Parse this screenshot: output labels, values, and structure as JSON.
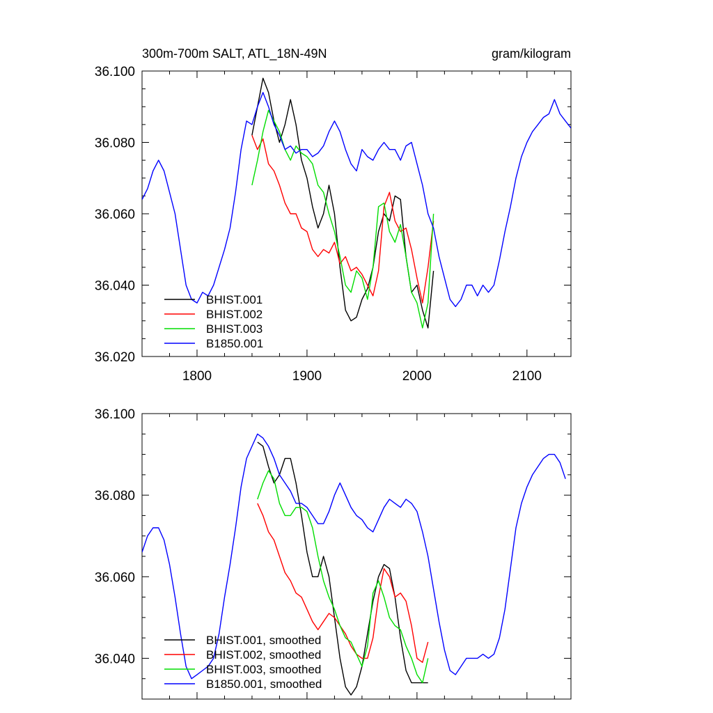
{
  "header": {
    "title": "300m-700m SALT, ATL_18N-49N",
    "units": "gram/kilogram"
  },
  "chart_data": [
    {
      "type": "line",
      "xlim": [
        1750,
        2140
      ],
      "ylim": [
        36.02,
        36.1
      ],
      "xticks": [
        1800,
        1900,
        2000,
        2100
      ],
      "yticks": [
        36.02,
        36.04,
        36.06,
        36.08,
        36.1
      ],
      "xtick_labels": [
        "1800",
        "1900",
        "2000",
        "2100"
      ],
      "ytick_labels": [
        "36.020",
        "36.040",
        "36.060",
        "36.080",
        "36.100"
      ],
      "legend_position": "bottom-left",
      "series": [
        {
          "name": "BHIST.001",
          "color": "#000000",
          "x": [
            1850,
            1855,
            1860,
            1865,
            1870,
            1875,
            1880,
            1885,
            1890,
            1895,
            1900,
            1905,
            1910,
            1915,
            1920,
            1925,
            1930,
            1935,
            1940,
            1945,
            1950,
            1955,
            1960,
            1965,
            1970,
            1975,
            1980,
            1985,
            1990,
            1995,
            2000,
            2005,
            2010,
            2015
          ],
          "y": [
            36.082,
            36.09,
            36.098,
            36.094,
            36.086,
            36.08,
            36.085,
            36.092,
            36.085,
            36.075,
            36.07,
            36.062,
            36.056,
            36.06,
            36.068,
            36.06,
            36.045,
            36.033,
            36.03,
            36.031,
            36.036,
            36.039,
            36.045,
            36.055,
            36.06,
            36.058,
            36.065,
            36.064,
            36.048,
            36.038,
            36.04,
            36.033,
            36.028,
            36.044
          ]
        },
        {
          "name": "BHIST.002",
          "color": "#ff0000",
          "x": [
            1850,
            1855,
            1860,
            1865,
            1870,
            1875,
            1880,
            1885,
            1890,
            1895,
            1900,
            1905,
            1910,
            1915,
            1920,
            1925,
            1930,
            1935,
            1940,
            1945,
            1950,
            1955,
            1960,
            1965,
            1970,
            1975,
            1980,
            1985,
            1990,
            1995,
            2000,
            2005,
            2010,
            2015
          ],
          "y": [
            36.082,
            36.078,
            36.081,
            36.074,
            36.072,
            36.068,
            36.063,
            36.06,
            36.06,
            36.056,
            36.055,
            36.05,
            36.048,
            36.05,
            36.049,
            36.052,
            36.046,
            36.048,
            36.044,
            36.045,
            36.043,
            36.04,
            36.037,
            36.044,
            36.062,
            36.066,
            36.058,
            36.055,
            36.056,
            36.05,
            36.042,
            36.035,
            36.045,
            36.058
          ]
        },
        {
          "name": "BHIST.003",
          "color": "#00dd00",
          "x": [
            1850,
            1855,
            1860,
            1865,
            1870,
            1875,
            1880,
            1885,
            1890,
            1895,
            1900,
            1905,
            1910,
            1915,
            1920,
            1925,
            1930,
            1935,
            1940,
            1945,
            1950,
            1955,
            1960,
            1965,
            1970,
            1975,
            1980,
            1985,
            1990,
            1995,
            2000,
            2005,
            2010,
            2015
          ],
          "y": [
            36.068,
            36.075,
            36.083,
            36.089,
            36.086,
            36.083,
            36.078,
            36.075,
            36.079,
            36.077,
            36.076,
            36.074,
            36.068,
            36.066,
            36.06,
            36.055,
            36.048,
            36.04,
            36.038,
            36.044,
            36.042,
            36.036,
            36.045,
            36.062,
            36.063,
            36.055,
            36.052,
            36.057,
            36.048,
            36.038,
            36.035,
            36.028,
            36.035,
            36.06
          ]
        },
        {
          "name": "B1850.001",
          "color": "#0000ff",
          "x": [
            1750,
            1755,
            1760,
            1765,
            1770,
            1775,
            1780,
            1785,
            1790,
            1795,
            1800,
            1805,
            1810,
            1815,
            1820,
            1825,
            1830,
            1835,
            1840,
            1845,
            1850,
            1855,
            1860,
            1865,
            1870,
            1875,
            1880,
            1885,
            1890,
            1895,
            1900,
            1905,
            1910,
            1915,
            1920,
            1925,
            1930,
            1935,
            1940,
            1945,
            1950,
            1955,
            1960,
            1965,
            1970,
            1975,
            1980,
            1985,
            1990,
            1995,
            2000,
            2005,
            2010,
            2015,
            2020,
            2025,
            2030,
            2035,
            2040,
            2045,
            2050,
            2055,
            2060,
            2065,
            2070,
            2075,
            2080,
            2085,
            2090,
            2095,
            2100,
            2105,
            2110,
            2115,
            2120,
            2125,
            2130,
            2135,
            2140
          ],
          "y": [
            36.064,
            36.067,
            36.072,
            36.075,
            36.072,
            36.066,
            36.06,
            36.05,
            36.04,
            36.036,
            36.035,
            36.038,
            36.037,
            36.04,
            36.045,
            36.05,
            36.056,
            36.066,
            36.078,
            36.086,
            36.085,
            36.09,
            36.094,
            36.09,
            36.085,
            36.082,
            36.078,
            36.079,
            36.077,
            36.078,
            36.078,
            36.076,
            36.077,
            36.079,
            36.083,
            36.086,
            36.083,
            36.078,
            36.074,
            36.072,
            36.078,
            36.076,
            36.075,
            36.078,
            36.08,
            36.078,
            36.078,
            36.075,
            36.079,
            36.08,
            36.074,
            36.068,
            36.06,
            36.056,
            36.048,
            36.042,
            36.036,
            36.034,
            36.036,
            36.04,
            36.04,
            36.037,
            36.04,
            36.038,
            36.04,
            36.047,
            36.055,
            36.062,
            36.07,
            36.076,
            36.08,
            36.083,
            36.085,
            36.087,
            36.088,
            36.092,
            36.088,
            36.086,
            36.084
          ]
        }
      ]
    },
    {
      "type": "line",
      "xlim": [
        1750,
        2140
      ],
      "ylim": [
        36.03,
        36.1
      ],
      "xticks": [
        1800,
        1900,
        2000,
        2100
      ],
      "yticks": [
        36.04,
        36.06,
        36.08,
        36.1
      ],
      "ytick_labels": [
        "36.040",
        "36.060",
        "36.080",
        "36.100"
      ],
      "legend_position": "bottom-left",
      "series": [
        {
          "name": "BHIST.001, smoothed",
          "color": "#000000",
          "x": [
            1855,
            1860,
            1865,
            1870,
            1875,
            1880,
            1885,
            1890,
            1895,
            1900,
            1905,
            1910,
            1915,
            1920,
            1925,
            1930,
            1935,
            1940,
            1945,
            1950,
            1955,
            1960,
            1965,
            1970,
            1975,
            1980,
            1985,
            1990,
            1995,
            2000,
            2005,
            2010
          ],
          "y": [
            36.093,
            36.092,
            36.087,
            36.083,
            36.085,
            36.089,
            36.089,
            36.083,
            36.075,
            36.066,
            36.06,
            36.06,
            36.065,
            36.06,
            36.05,
            36.04,
            36.033,
            36.031,
            36.033,
            36.038,
            36.046,
            36.054,
            36.06,
            36.063,
            36.062,
            36.055,
            36.045,
            36.037,
            36.034,
            36.034,
            36.034,
            36.034
          ]
        },
        {
          "name": "BHIST.002, smoothed",
          "color": "#ff0000",
          "x": [
            1855,
            1860,
            1865,
            1870,
            1875,
            1880,
            1885,
            1890,
            1895,
            1900,
            1905,
            1910,
            1915,
            1920,
            1925,
            1930,
            1935,
            1940,
            1945,
            1950,
            1955,
            1960,
            1965,
            1970,
            1975,
            1980,
            1985,
            1990,
            1995,
            2000,
            2005,
            2010
          ],
          "y": [
            36.078,
            36.075,
            36.071,
            36.069,
            36.065,
            36.061,
            36.059,
            36.056,
            36.055,
            36.052,
            36.049,
            36.047,
            36.049,
            36.051,
            36.05,
            36.048,
            36.046,
            36.043,
            36.041,
            36.04,
            36.04,
            36.045,
            36.055,
            36.062,
            36.06,
            36.055,
            36.056,
            36.054,
            36.048,
            36.04,
            36.039,
            36.044
          ]
        },
        {
          "name": "BHIST.003, smoothed",
          "color": "#00dd00",
          "x": [
            1855,
            1860,
            1865,
            1870,
            1875,
            1880,
            1885,
            1890,
            1895,
            1900,
            1905,
            1910,
            1915,
            1920,
            1925,
            1930,
            1935,
            1940,
            1945,
            1950,
            1955,
            1960,
            1965,
            1970,
            1975,
            1980,
            1985,
            1990,
            1995,
            2000,
            2005,
            2010
          ],
          "y": [
            36.079,
            36.083,
            36.086,
            36.084,
            36.078,
            36.075,
            36.075,
            36.077,
            36.077,
            36.076,
            36.072,
            36.065,
            36.059,
            36.055,
            36.052,
            36.048,
            36.045,
            36.044,
            36.041,
            36.038,
            36.043,
            36.056,
            36.059,
            36.055,
            36.05,
            36.048,
            36.047,
            36.043,
            36.04,
            36.036,
            36.034,
            36.04
          ]
        },
        {
          "name": "B1850.001, smoothed",
          "color": "#0000ff",
          "x": [
            1750,
            1755,
            1760,
            1765,
            1770,
            1775,
            1780,
            1785,
            1790,
            1795,
            1800,
            1805,
            1810,
            1815,
            1820,
            1825,
            1830,
            1835,
            1840,
            1845,
            1850,
            1855,
            1860,
            1865,
            1870,
            1875,
            1880,
            1885,
            1890,
            1895,
            1900,
            1905,
            1910,
            1915,
            1920,
            1925,
            1930,
            1935,
            1940,
            1945,
            1950,
            1955,
            1960,
            1965,
            1970,
            1975,
            1980,
            1985,
            1990,
            1995,
            2000,
            2005,
            2010,
            2015,
            2020,
            2025,
            2030,
            2035,
            2040,
            2045,
            2050,
            2055,
            2060,
            2065,
            2070,
            2075,
            2080,
            2085,
            2090,
            2095,
            2100,
            2105,
            2110,
            2115,
            2120,
            2125,
            2130,
            2135
          ],
          "y": [
            36.066,
            36.07,
            36.072,
            36.072,
            36.069,
            36.063,
            36.055,
            36.046,
            36.038,
            36.035,
            36.036,
            36.037,
            36.038,
            36.04,
            36.046,
            36.055,
            36.063,
            36.072,
            36.082,
            36.089,
            36.092,
            36.095,
            36.094,
            36.092,
            36.089,
            36.085,
            36.083,
            36.081,
            36.078,
            36.078,
            36.077,
            36.075,
            36.073,
            36.073,
            36.076,
            36.08,
            36.083,
            36.08,
            36.077,
            36.075,
            36.074,
            36.072,
            36.071,
            36.074,
            36.077,
            36.079,
            36.078,
            36.077,
            36.079,
            36.078,
            36.076,
            36.071,
            36.065,
            36.057,
            36.049,
            36.042,
            36.037,
            36.036,
            36.038,
            36.04,
            36.04,
            36.04,
            36.041,
            36.04,
            36.041,
            36.045,
            36.052,
            36.062,
            36.072,
            36.078,
            36.082,
            36.085,
            36.087,
            36.089,
            36.09,
            36.09,
            36.088,
            36.084
          ]
        }
      ]
    }
  ]
}
